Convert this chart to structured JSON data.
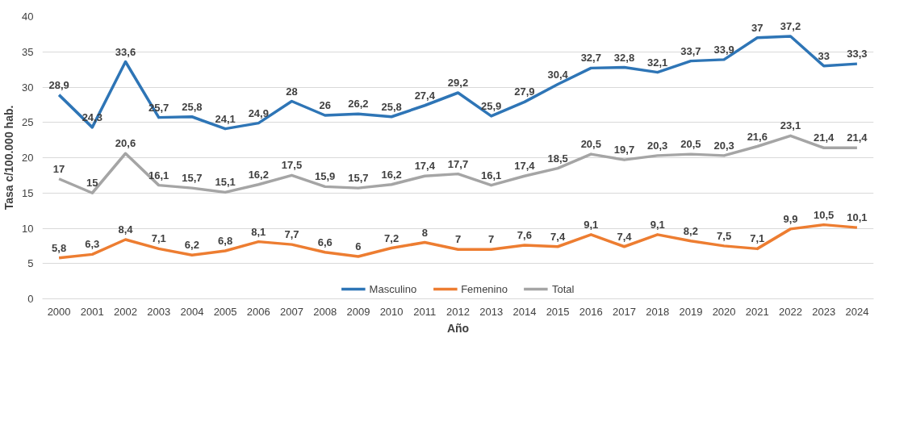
{
  "chart_data": {
    "type": "line",
    "xlabel": "Año",
    "ylabel": "Tasa c/100.000 hab.",
    "categories": [
      "2000",
      "2001",
      "2002",
      "2003",
      "2004",
      "2005",
      "2006",
      "2007",
      "2008",
      "2009",
      "2010",
      "2011",
      "2012",
      "2013",
      "2014",
      "2015",
      "2016",
      "2017",
      "2018",
      "2019",
      "2020",
      "2021",
      "2022",
      "2023",
      "2024"
    ],
    "ylim": [
      0,
      40
    ],
    "yticks": [
      0,
      5,
      10,
      15,
      20,
      25,
      30,
      35,
      40
    ],
    "grid": "y",
    "legend": "bottom",
    "marker": "none",
    "line_style": "solid",
    "series": [
      {
        "name": "Masculino",
        "color": "#2e75b6",
        "values": [
          28.9,
          24.3,
          33.6,
          25.7,
          25.8,
          24.1,
          24.9,
          28,
          26,
          26.2,
          25.8,
          27.4,
          29.2,
          25.9,
          27.9,
          30.4,
          32.7,
          32.8,
          32.1,
          33.7,
          33.9,
          37,
          37.2,
          33,
          33.3
        ],
        "value_labels": [
          "28,9",
          "24,3",
          "33,6",
          "25,7",
          "25,8",
          "24,1",
          "24,9",
          "28",
          "26",
          "26,2",
          "25,8",
          "27,4",
          "29,2",
          "25,9",
          "27,9",
          "30,4",
          "32,7",
          "32,8",
          "32,1",
          "33,7",
          "33,9",
          "37",
          "37,2",
          "33",
          "33,3"
        ]
      },
      {
        "name": "Femenino",
        "color": "#ed7d31",
        "values": [
          5.8,
          6.3,
          8.4,
          7.1,
          6.2,
          6.8,
          8.1,
          7.7,
          6.6,
          6,
          7.2,
          8,
          7,
          7,
          7.6,
          7.4,
          9.1,
          7.4,
          9.1,
          8.2,
          7.5,
          7.1,
          9.9,
          10.5,
          10.1
        ],
        "value_labels": [
          "5,8",
          "6,3",
          "8,4",
          "7,1",
          "6,2",
          "6,8",
          "8,1",
          "7,7",
          "6,6",
          "6",
          "7,2",
          "8",
          "7",
          "7",
          "7,6",
          "7,4",
          "9,1",
          "7,4",
          "9,1",
          "8,2",
          "7,5",
          "7,1",
          "9,9",
          "10,5",
          "10,1"
        ]
      },
      {
        "name": "Total",
        "color": "#a5a5a5",
        "values": [
          17,
          15,
          20.6,
          16.1,
          15.7,
          15.1,
          16.2,
          17.5,
          15.9,
          15.7,
          16.2,
          17.4,
          17.7,
          16.1,
          17.4,
          18.5,
          20.5,
          19.7,
          20.3,
          20.5,
          20.3,
          21.6,
          23.1,
          21.4,
          21.4
        ],
        "value_labels": [
          "17",
          "15",
          "20,6",
          "16,1",
          "15,7",
          "15,1",
          "16,2",
          "17,5",
          "15,9",
          "15,7",
          "16,2",
          "17,4",
          "17,7",
          "16,1",
          "17,4",
          "18,5",
          "20,5",
          "19,7",
          "20,3",
          "20,5",
          "20,3",
          "21,6",
          "23,1",
          "21,4",
          "21,4"
        ]
      }
    ]
  }
}
